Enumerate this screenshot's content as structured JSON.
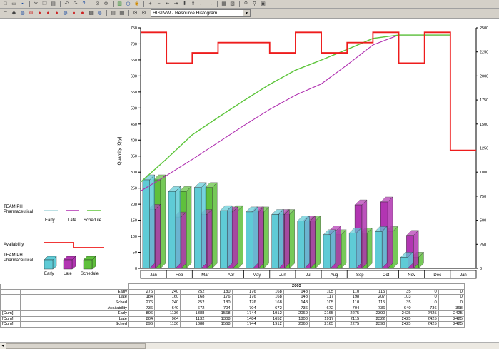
{
  "toolbar": {
    "view_select_value": "HISTVW - Resource Histogram",
    "row1_icons": [
      "new-icon",
      "open-icon",
      "save-icon",
      "cut-icon",
      "copy-icon",
      "paste-icon",
      "undo-icon",
      "redo-icon",
      "help-icon",
      "zoom-icon",
      "disable-icon",
      "histogram-icon",
      "clock-icon",
      "circle-icon",
      "add-icon",
      "minus-icon",
      "outdent-icon",
      "indent-icon",
      "move-down-icon",
      "move-up-icon",
      "arrow-left-icon",
      "arrow-right-icon",
      "table-icon",
      "chart-icon",
      "filter-icon",
      "find-icon",
      "print-icon"
    ],
    "row2_icons": [
      "link-icon",
      "diamond-icon",
      "circle-gear-icon",
      "circle-x-icon",
      "car-icon",
      "car-icon",
      "car-icon",
      "circle-gear-icon",
      "car-icon",
      "car-icon",
      "calendar-icon",
      "circle-gear-icon",
      "grid-icon",
      "table-icon",
      "gear-icon",
      "gear-icon"
    ]
  },
  "legend": {
    "lines_resource": "TEAM.PH",
    "lines_resource_name": "Pharmaceutical",
    "early_label": "Early",
    "late_label": "Late",
    "schedule_label": "Schedule",
    "availability_label": "Availability",
    "bars_resource": "TEAM.PH",
    "bars_resource_name": "Pharmaceutical",
    "bar_early_label": "Early",
    "bar_late_label": "Late",
    "bar_schedule_label": "Schedule"
  },
  "colors": {
    "early": "#5fcbd6",
    "late": "#b235b2",
    "schedule": "#5fc03c",
    "availability": "#ee1c1c",
    "early_line": "#a6d6dc",
    "late_line": "#b02fb0",
    "schedule_line": "#5ec63a"
  },
  "chart_data": {
    "type": "bar",
    "categories": [
      "Jan",
      "Feb",
      "Mar",
      "Apr",
      "May",
      "Jun",
      "Jul",
      "Aug",
      "Sep",
      "Oct",
      "Nov",
      "Dec",
      "Jan"
    ],
    "ylabel": "Quantity [Qty]",
    "ylim": [
      0,
      750
    ],
    "yticks": [
      "0",
      "50",
      "100",
      "150",
      "200",
      "250",
      "300",
      "350",
      "400",
      "450",
      "500",
      "550",
      "600",
      "650",
      "700",
      "750"
    ],
    "y2lim": [
      0,
      2500
    ],
    "y2ticks": [
      "0",
      "250",
      "500",
      "750",
      "1000",
      "1250",
      "1500",
      "1750",
      "2000",
      "2250",
      "2500"
    ],
    "year_label": "2003",
    "series": [
      {
        "name": "Early",
        "values": [
          276,
          240,
          252,
          180,
          176,
          168,
          148,
          105,
          110,
          115,
          35,
          0,
          0
        ]
      },
      {
        "name": "Late",
        "values": [
          184,
          160,
          168,
          176,
          176,
          168,
          148,
          117,
          198,
          207,
          103,
          0,
          0
        ]
      },
      {
        "name": "Sched",
        "values": [
          276,
          240,
          252,
          180,
          176,
          168,
          148,
          105,
          110,
          115,
          35,
          0,
          0
        ]
      },
      {
        "name": "Availability",
        "values": [
          736,
          640,
          672,
          704,
          704,
          672,
          736,
          672,
          704,
          736,
          640,
          736,
          368
        ]
      },
      {
        "name": "Cum Early",
        "values": [
          896,
          1136,
          1388,
          1568,
          1744,
          1912,
          2060,
          2165,
          2275,
          2390,
          2425,
          2425,
          2425
        ]
      },
      {
        "name": "Cum Late",
        "values": [
          804,
          964,
          1132,
          1308,
          1484,
          1652,
          1800,
          1917,
          2115,
          2322,
          2425,
          2425,
          2425
        ]
      },
      {
        "name": "Cum Sched",
        "values": [
          896,
          1136,
          1388,
          1568,
          1744,
          1912,
          2060,
          2165,
          2275,
          2390,
          2425,
          2425,
          2425
        ]
      }
    ]
  },
  "table": {
    "year": "2003",
    "cum_prefix": "[Cum]",
    "rows": [
      {
        "prefix": "",
        "label": "Early",
        "values": [
          "276",
          "240",
          "252",
          "180",
          "176",
          "168",
          "148",
          "105",
          "110",
          "115",
          "35",
          "0",
          "0"
        ]
      },
      {
        "prefix": "",
        "label": "Late",
        "values": [
          "184",
          "160",
          "168",
          "176",
          "176",
          "168",
          "148",
          "117",
          "198",
          "207",
          "103",
          "0",
          "0"
        ]
      },
      {
        "prefix": "",
        "label": "Sched",
        "values": [
          "276",
          "240",
          "252",
          "180",
          "176",
          "168",
          "148",
          "105",
          "110",
          "115",
          "35",
          "0",
          "0"
        ]
      },
      {
        "prefix": "",
        "label": "Availability",
        "values": [
          "736",
          "640",
          "672",
          "704",
          "704",
          "672",
          "736",
          "672",
          "704",
          "736",
          "640",
          "736",
          "368"
        ]
      },
      {
        "prefix": "[Cum]",
        "label": "Early",
        "values": [
          "896",
          "1136",
          "1388",
          "1568",
          "1744",
          "1912",
          "2060",
          "2165",
          "2275",
          "2390",
          "2425",
          "2425",
          "2425"
        ]
      },
      {
        "prefix": "[Cum]",
        "label": "Late",
        "values": [
          "804",
          "964",
          "1132",
          "1308",
          "1484",
          "1652",
          "1800",
          "1917",
          "2115",
          "2322",
          "2425",
          "2425",
          "2425"
        ]
      },
      {
        "prefix": "[Cum]",
        "label": "Sched",
        "values": [
          "896",
          "1136",
          "1388",
          "1568",
          "1744",
          "1912",
          "2060",
          "2165",
          "2275",
          "2390",
          "2425",
          "2425",
          "2425"
        ]
      }
    ]
  }
}
